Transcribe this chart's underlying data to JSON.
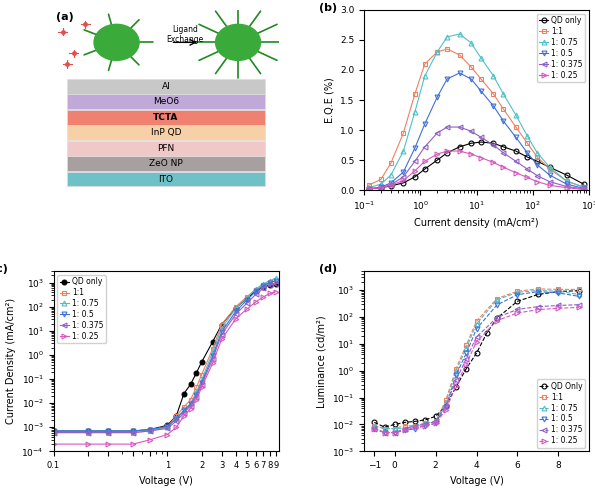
{
  "panel_a": {
    "layers_top_to_bottom": [
      {
        "label": "Al",
        "color": "#c8c8c8"
      },
      {
        "label": "MeO6",
        "color": "#c0a8d8"
      },
      {
        "label": "TCTA",
        "color": "#f08070"
      },
      {
        "label": "InP QD",
        "color": "#f8d0a8"
      },
      {
        "label": "PFN",
        "color": "#f0c8c8"
      },
      {
        "label": "ZeO NP",
        "color": "#a8a0a0"
      },
      {
        "label": "ITO",
        "color": "#70c0c8"
      }
    ]
  },
  "panel_b": {
    "xlabel": "Current density (mA/cm²)",
    "ylabel": "E.Q.E (%)",
    "series": [
      {
        "label": "QD only",
        "color": "#000000",
        "marker": "o",
        "linestyle": "-",
        "x": [
          0.12,
          0.2,
          0.3,
          0.5,
          0.8,
          1.2,
          2.0,
          3.0,
          5.0,
          8.0,
          12.0,
          20.0,
          30.0,
          50.0,
          80.0,
          120.0,
          200.0,
          400.0,
          800.0
        ],
        "y": [
          0.02,
          0.04,
          0.07,
          0.12,
          0.22,
          0.35,
          0.5,
          0.62,
          0.72,
          0.78,
          0.8,
          0.78,
          0.72,
          0.65,
          0.55,
          0.48,
          0.38,
          0.25,
          0.1
        ]
      },
      {
        "label": "1:1",
        "color": "#f08060",
        "marker": "s",
        "linestyle": "-",
        "x": [
          0.12,
          0.2,
          0.3,
          0.5,
          0.8,
          1.2,
          2.0,
          3.0,
          5.0,
          8.0,
          12.0,
          20.0,
          30.0,
          50.0,
          80.0,
          120.0,
          200.0,
          400.0,
          800.0
        ],
        "y": [
          0.08,
          0.18,
          0.45,
          0.95,
          1.6,
          2.1,
          2.3,
          2.35,
          2.25,
          2.05,
          1.85,
          1.6,
          1.35,
          1.05,
          0.78,
          0.55,
          0.35,
          0.15,
          0.05
        ]
      },
      {
        "label": "1: 0.75",
        "color": "#50c0c8",
        "marker": "^",
        "linestyle": "-",
        "x": [
          0.12,
          0.2,
          0.3,
          0.5,
          0.8,
          1.2,
          2.0,
          3.0,
          5.0,
          8.0,
          12.0,
          20.0,
          30.0,
          50.0,
          80.0,
          120.0,
          200.0,
          400.0,
          800.0
        ],
        "y": [
          0.04,
          0.1,
          0.25,
          0.65,
          1.3,
          1.9,
          2.3,
          2.55,
          2.6,
          2.45,
          2.2,
          1.9,
          1.6,
          1.25,
          0.9,
          0.62,
          0.38,
          0.15,
          0.05
        ]
      },
      {
        "label": "1: 0.5",
        "color": "#4070d8",
        "marker": "v",
        "linestyle": "-",
        "x": [
          0.12,
          0.2,
          0.3,
          0.5,
          0.8,
          1.2,
          2.0,
          3.0,
          5.0,
          8.0,
          12.0,
          20.0,
          30.0,
          50.0,
          80.0,
          120.0,
          200.0,
          400.0,
          800.0
        ],
        "y": [
          0.02,
          0.05,
          0.12,
          0.3,
          0.7,
          1.1,
          1.55,
          1.85,
          1.95,
          1.85,
          1.65,
          1.4,
          1.15,
          0.88,
          0.62,
          0.42,
          0.25,
          0.1,
          0.03
        ]
      },
      {
        "label": "1: 0.375",
        "color": "#9060c8",
        "marker": "<",
        "linestyle": "-",
        "x": [
          0.12,
          0.2,
          0.3,
          0.5,
          0.8,
          1.2,
          2.0,
          3.0,
          5.0,
          8.0,
          12.0,
          20.0,
          30.0,
          50.0,
          80.0,
          120.0,
          200.0,
          400.0,
          800.0
        ],
        "y": [
          0.02,
          0.04,
          0.09,
          0.22,
          0.48,
          0.72,
          0.95,
          1.05,
          1.05,
          0.98,
          0.88,
          0.75,
          0.62,
          0.48,
          0.35,
          0.24,
          0.14,
          0.06,
          0.02
        ]
      },
      {
        "label": "1: 0.25",
        "color": "#d858c0",
        "marker": ">",
        "linestyle": "-",
        "x": [
          0.12,
          0.2,
          0.3,
          0.5,
          0.8,
          1.2,
          2.0,
          3.0,
          5.0,
          8.0,
          12.0,
          20.0,
          30.0,
          50.0,
          80.0,
          120.0,
          200.0,
          400.0,
          800.0
        ],
        "y": [
          0.02,
          0.04,
          0.08,
          0.16,
          0.32,
          0.48,
          0.6,
          0.65,
          0.65,
          0.6,
          0.54,
          0.46,
          0.38,
          0.29,
          0.21,
          0.14,
          0.08,
          0.04,
          0.01
        ]
      }
    ]
  },
  "panel_c": {
    "xlabel": "Voltage (V)",
    "ylabel": "Current Density (mA/cm²)",
    "series": [
      {
        "label": "QD only",
        "color": "#000000",
        "marker": "o",
        "filled": true,
        "linestyle": "-",
        "x": [
          0.1,
          0.2,
          0.3,
          0.5,
          0.7,
          1.0,
          1.2,
          1.4,
          1.6,
          1.8,
          2.0,
          2.5,
          3.0,
          4.0,
          5.0,
          6.0,
          7.0,
          8.0,
          9.0
        ],
        "y": [
          0.0007,
          0.0007,
          0.0007,
          0.0007,
          0.0008,
          0.0012,
          0.003,
          0.025,
          0.06,
          0.18,
          0.5,
          3.5,
          18.0,
          90.0,
          220.0,
          450.0,
          650.0,
          800.0,
          900.0
        ]
      },
      {
        "label": "1:1",
        "color": "#f08060",
        "marker": "s",
        "filled": false,
        "linestyle": "-",
        "x": [
          0.1,
          0.2,
          0.3,
          0.5,
          0.7,
          1.0,
          1.2,
          1.4,
          1.6,
          1.8,
          2.0,
          2.5,
          3.0,
          4.0,
          5.0,
          6.0,
          7.0,
          8.0,
          9.0
        ],
        "y": [
          0.0006,
          0.0006,
          0.0006,
          0.0006,
          0.0007,
          0.001,
          0.003,
          0.007,
          0.014,
          0.045,
          0.15,
          1.8,
          18.0,
          100.0,
          260.0,
          520.0,
          820.0,
          1050.0,
          1200.0
        ]
      },
      {
        "label": "1: 0.75",
        "color": "#50c0c8",
        "marker": "^",
        "filled": false,
        "linestyle": "-",
        "x": [
          0.1,
          0.2,
          0.3,
          0.5,
          0.7,
          1.0,
          1.2,
          1.4,
          1.6,
          1.8,
          2.0,
          2.5,
          3.0,
          4.0,
          5.0,
          6.0,
          7.0,
          8.0,
          9.0
        ],
        "y": [
          0.0007,
          0.0007,
          0.0007,
          0.0007,
          0.0008,
          0.001,
          0.0025,
          0.005,
          0.01,
          0.028,
          0.09,
          1.3,
          13.0,
          85.0,
          240.0,
          550.0,
          900.0,
          1200.0,
          1600.0
        ]
      },
      {
        "label": "1: 0.5",
        "color": "#4070d8",
        "marker": "v",
        "filled": false,
        "linestyle": "-",
        "x": [
          0.1,
          0.2,
          0.3,
          0.5,
          0.7,
          1.0,
          1.2,
          1.4,
          1.6,
          1.8,
          2.0,
          2.5,
          3.0,
          4.0,
          5.0,
          6.0,
          7.0,
          8.0,
          9.0
        ],
        "y": [
          0.0007,
          0.0007,
          0.0007,
          0.0007,
          0.0008,
          0.0011,
          0.0022,
          0.005,
          0.009,
          0.022,
          0.07,
          0.9,
          9.0,
          65.0,
          190.0,
          440.0,
          750.0,
          1000.0,
          1200.0
        ]
      },
      {
        "label": "1: 0.375",
        "color": "#9060c8",
        "marker": "<",
        "filled": false,
        "linestyle": "-",
        "x": [
          0.1,
          0.2,
          0.3,
          0.5,
          0.7,
          1.0,
          1.2,
          1.4,
          1.6,
          1.8,
          2.0,
          2.5,
          3.0,
          4.0,
          5.0,
          6.0,
          7.0,
          8.0,
          9.0
        ],
        "y": [
          0.0006,
          0.0006,
          0.0006,
          0.0006,
          0.0007,
          0.0009,
          0.0018,
          0.004,
          0.008,
          0.018,
          0.055,
          0.7,
          7.0,
          50.0,
          140.0,
          330.0,
          580.0,
          780.0,
          900.0
        ]
      },
      {
        "label": "1: 0.25",
        "color": "#d858c0",
        "marker": ">",
        "filled": false,
        "linestyle": "-",
        "x": [
          0.1,
          0.2,
          0.3,
          0.5,
          0.7,
          1.0,
          1.2,
          1.4,
          1.6,
          1.8,
          2.0,
          2.5,
          3.0,
          4.0,
          5.0,
          6.0,
          7.0,
          8.0,
          9.0
        ],
        "y": [
          0.0002,
          0.0002,
          0.0002,
          0.0002,
          0.0003,
          0.0005,
          0.001,
          0.003,
          0.006,
          0.014,
          0.045,
          0.45,
          4.5,
          32.0,
          80.0,
          160.0,
          260.0,
          360.0,
          420.0
        ]
      }
    ]
  },
  "panel_d": {
    "xlabel": "Voltage (V)",
    "ylabel": "Luminance (cd/m²)",
    "series": [
      {
        "label": "QD Only",
        "color": "#000000",
        "marker": "o",
        "linestyle": "--",
        "x": [
          -1.0,
          -0.5,
          0.0,
          0.5,
          1.0,
          1.5,
          2.0,
          2.5,
          3.0,
          3.5,
          4.0,
          4.5,
          5.0,
          6.0,
          7.0,
          8.0,
          9.0
        ],
        "y": [
          0.012,
          0.008,
          0.01,
          0.012,
          0.013,
          0.015,
          0.02,
          0.05,
          0.25,
          1.2,
          4.5,
          25.0,
          90.0,
          380.0,
          680.0,
          880.0,
          940.0
        ]
      },
      {
        "label": "1:1",
        "color": "#f08060",
        "marker": "s",
        "linestyle": "--",
        "x": [
          -1.0,
          -0.5,
          0.0,
          0.5,
          1.0,
          1.5,
          2.0,
          2.5,
          3.0,
          3.5,
          4.0,
          5.0,
          6.0,
          7.0,
          8.0,
          9.0
        ],
        "y": [
          0.009,
          0.007,
          0.007,
          0.009,
          0.009,
          0.011,
          0.013,
          0.08,
          1.2,
          9.0,
          70.0,
          480.0,
          900.0,
          1100.0,
          1050.0,
          1050.0
        ]
      },
      {
        "label": "1: 0.75",
        "color": "#50c0c8",
        "marker": "^",
        "linestyle": "--",
        "x": [
          -1.0,
          -0.5,
          0.0,
          0.5,
          1.0,
          1.5,
          2.0,
          2.5,
          3.0,
          3.5,
          4.0,
          5.0,
          6.0,
          7.0,
          8.0,
          9.0
        ],
        "y": [
          0.009,
          0.007,
          0.007,
          0.007,
          0.009,
          0.011,
          0.013,
          0.065,
          1.0,
          7.0,
          55.0,
          430.0,
          820.0,
          960.0,
          900.0,
          680.0
        ]
      },
      {
        "label": "1: 0.5",
        "color": "#4070d8",
        "marker": "v",
        "linestyle": "--",
        "x": [
          -1.0,
          -0.5,
          0.0,
          0.5,
          1.0,
          1.5,
          2.0,
          2.5,
          3.0,
          3.5,
          4.0,
          5.0,
          6.0,
          7.0,
          8.0,
          9.0
        ],
        "y": [
          0.007,
          0.005,
          0.005,
          0.006,
          0.007,
          0.009,
          0.011,
          0.045,
          0.7,
          4.5,
          36.0,
          280.0,
          670.0,
          870.0,
          780.0,
          580.0
        ]
      },
      {
        "label": "1: 0.375",
        "color": "#9060c8",
        "marker": "<",
        "linestyle": "--",
        "x": [
          -1.0,
          -0.5,
          0.0,
          0.5,
          1.0,
          1.5,
          2.0,
          2.5,
          3.0,
          3.5,
          4.0,
          5.0,
          6.0,
          7.0,
          8.0,
          9.0
        ],
        "y": [
          0.007,
          0.005,
          0.005,
          0.007,
          0.009,
          0.01,
          0.013,
          0.05,
          0.45,
          2.8,
          18.0,
          95.0,
          190.0,
          240.0,
          265.0,
          285.0
        ]
      },
      {
        "label": "1: 0.25",
        "color": "#d858c0",
        "marker": ">",
        "linestyle": "--",
        "x": [
          -1.0,
          -0.5,
          0.0,
          0.5,
          1.0,
          1.5,
          2.0,
          2.5,
          3.0,
          3.5,
          4.0,
          5.0,
          6.0,
          7.0,
          8.0,
          9.0
        ],
        "y": [
          0.007,
          0.005,
          0.005,
          0.006,
          0.008,
          0.009,
          0.011,
          0.035,
          0.28,
          1.8,
          12.0,
          72.0,
          140.0,
          185.0,
          210.0,
          225.0
        ]
      }
    ]
  }
}
